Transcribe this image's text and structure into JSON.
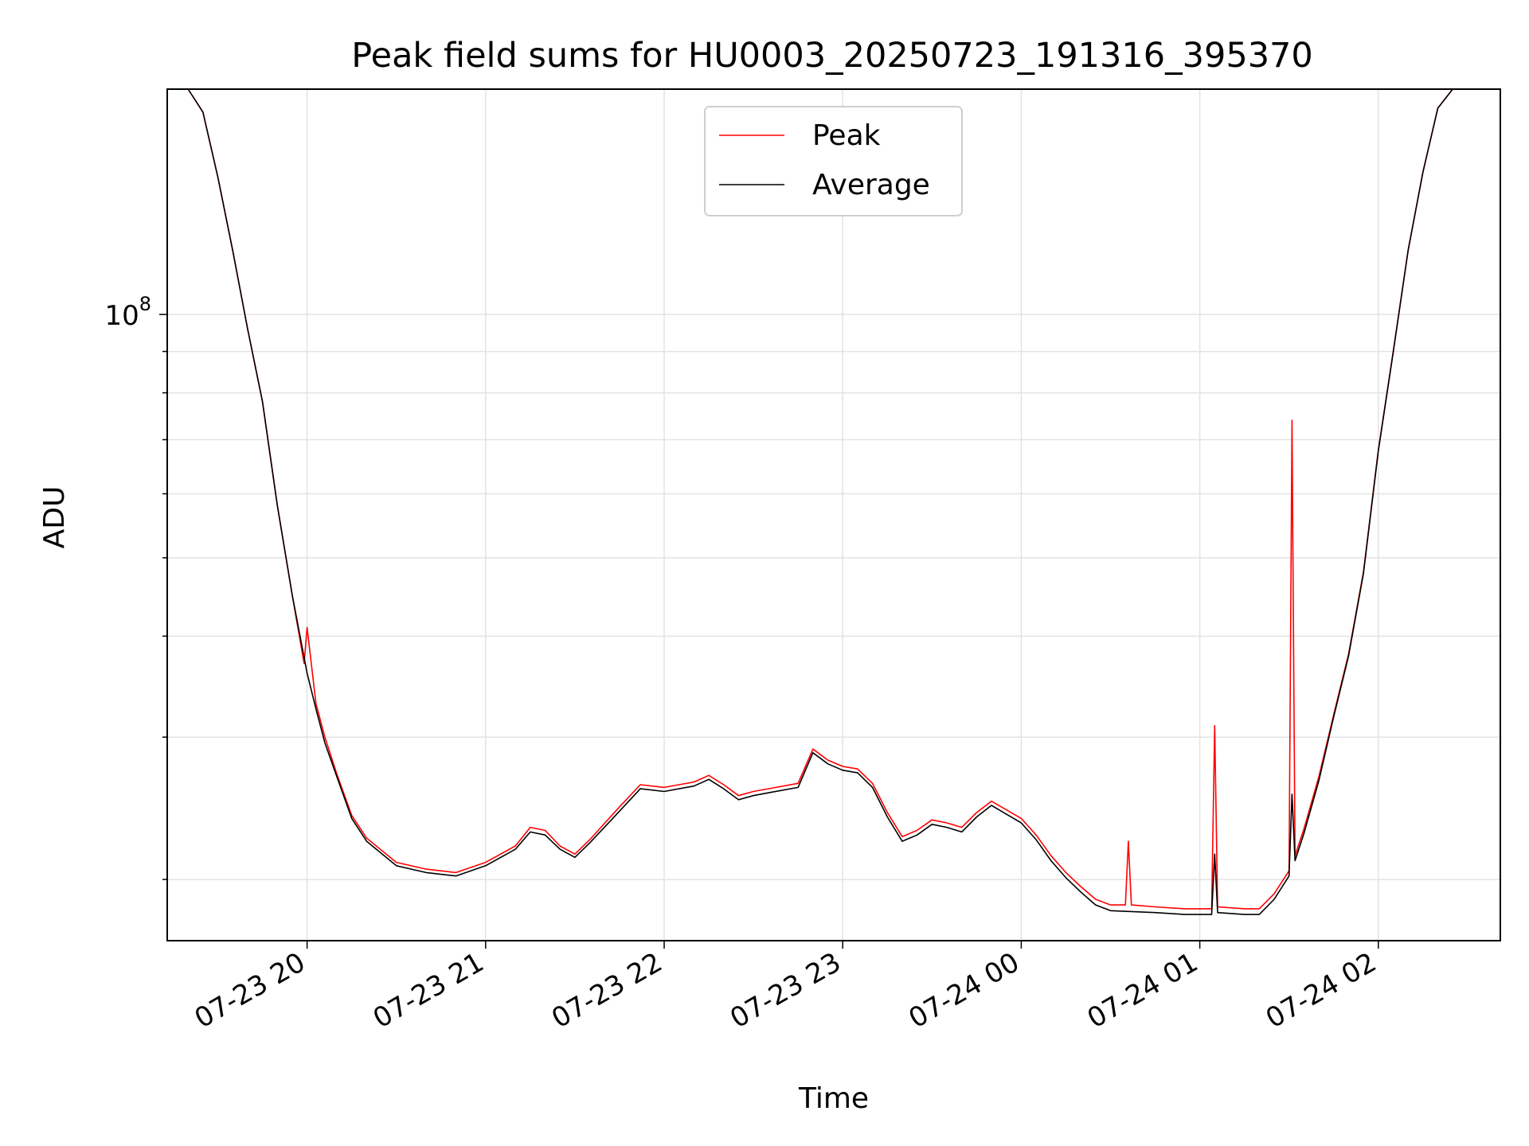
{
  "chart_data": {
    "type": "line",
    "title": "Peak field sums for HU0003_20250723_191316_395370",
    "xlabel": "Time",
    "ylabel": "ADU",
    "y_scale": "log",
    "xlim": [
      "2025-07-23 19:13",
      "2025-07-24 02:41"
    ],
    "ylim": [
      16800000,
      190000000
    ],
    "grid": true,
    "legend_placement": "upper-center",
    "x_ticks": [
      {
        "t": "2025-07-23 20:00",
        "label": "07-23 20"
      },
      {
        "t": "2025-07-23 21:00",
        "label": "07-23 21"
      },
      {
        "t": "2025-07-23 22:00",
        "label": "07-23 22"
      },
      {
        "t": "2025-07-23 23:00",
        "label": "07-23 23"
      },
      {
        "t": "2025-07-24 00:00",
        "label": "07-24 00"
      },
      {
        "t": "2025-07-24 01:00",
        "label": "07-24 01"
      },
      {
        "t": "2025-07-24 02:00",
        "label": "07-24 02"
      }
    ],
    "y_major_ticks": [
      {
        "value": 100000000,
        "base": "10",
        "exp": "8"
      }
    ],
    "y_minor_ticks": [
      20000000,
      30000000,
      40000000,
      50000000,
      60000000,
      70000000,
      80000000,
      90000000,
      200000000
    ],
    "series": [
      {
        "name": "Peak",
        "color": "#ff0000",
        "x": [
          "2025-07-23 19:13",
          "2025-07-23 19:20",
          "2025-07-23 19:25",
          "2025-07-23 19:30",
          "2025-07-23 19:35",
          "2025-07-23 19:40",
          "2025-07-23 19:45",
          "2025-07-23 19:50",
          "2025-07-23 19:55",
          "2025-07-23 19:59",
          "2025-07-23 20:00",
          "2025-07-23 20:03",
          "2025-07-23 20:06",
          "2025-07-23 20:10",
          "2025-07-23 20:15",
          "2025-07-23 20:20",
          "2025-07-23 20:30",
          "2025-07-23 20:40",
          "2025-07-23 20:50",
          "2025-07-23 21:00",
          "2025-07-23 21:10",
          "2025-07-23 21:15",
          "2025-07-23 21:20",
          "2025-07-23 21:25",
          "2025-07-23 21:30",
          "2025-07-23 21:35",
          "2025-07-23 21:45",
          "2025-07-23 21:52",
          "2025-07-23 22:00",
          "2025-07-23 22:10",
          "2025-07-23 22:15",
          "2025-07-23 22:20",
          "2025-07-23 22:25",
          "2025-07-23 22:30",
          "2025-07-23 22:35",
          "2025-07-23 22:45",
          "2025-07-23 22:50",
          "2025-07-23 22:55",
          "2025-07-23 23:00",
          "2025-07-23 23:05",
          "2025-07-23 23:10",
          "2025-07-23 23:15",
          "2025-07-23 23:20",
          "2025-07-23 23:25",
          "2025-07-23 23:30",
          "2025-07-23 23:35",
          "2025-07-23 23:40",
          "2025-07-23 23:45",
          "2025-07-23 23:50",
          "2025-07-24 00:00",
          "2025-07-24 00:05",
          "2025-07-24 00:10",
          "2025-07-24 00:15",
          "2025-07-24 00:20",
          "2025-07-24 00:25",
          "2025-07-24 00:30",
          "2025-07-24 00:35",
          "2025-07-24 00:36",
          "2025-07-24 00:37",
          "2025-07-24 00:45",
          "2025-07-24 00:55",
          "2025-07-24 01:04",
          "2025-07-24 01:05",
          "2025-07-24 01:06",
          "2025-07-24 01:15",
          "2025-07-24 01:20",
          "2025-07-24 01:25",
          "2025-07-24 01:30",
          "2025-07-24 01:31",
          "2025-07-24 01:32",
          "2025-07-24 01:35",
          "2025-07-24 01:40",
          "2025-07-24 01:45",
          "2025-07-24 01:50",
          "2025-07-24 01:55",
          "2025-07-24 02:00",
          "2025-07-24 02:05",
          "2025-07-24 02:10",
          "2025-07-24 02:15",
          "2025-07-24 02:20",
          "2025-07-24 02:25",
          "2025-07-24 02:30",
          "2025-07-24 02:41"
        ],
        "y": [
          190000000,
          190000000,
          178000000,
          148000000,
          120000000,
          96000000,
          78000000,
          58000000,
          45000000,
          37000000,
          41000000,
          33000000,
          30000000,
          27000000,
          24000000,
          22500000,
          21000000,
          20600000,
          20400000,
          21000000,
          22000000,
          23200000,
          23000000,
          22000000,
          21500000,
          22400000,
          24600000,
          26200000,
          26000000,
          26400000,
          26900000,
          26200000,
          25400000,
          25700000,
          25900000,
          26300000,
          29000000,
          28100000,
          27600000,
          27400000,
          26300000,
          24200000,
          22600000,
          23000000,
          23700000,
          23500000,
          23200000,
          24200000,
          25000000,
          23800000,
          22700000,
          21400000,
          20400000,
          19600000,
          18900000,
          18600000,
          18600000,
          22300000,
          18600000,
          18500000,
          18400000,
          18400000,
          31000000,
          18500000,
          18400000,
          18400000,
          19200000,
          20500000,
          74000000,
          21400000,
          23100000,
          26800000,
          32000000,
          38000000,
          48000000,
          68000000,
          90000000,
          120000000,
          150000000,
          180000000,
          190000000,
          190000000,
          190000000
        ]
      },
      {
        "name": "Average",
        "color": "#000000",
        "x": [
          "2025-07-23 19:13",
          "2025-07-23 19:20",
          "2025-07-23 19:25",
          "2025-07-23 19:30",
          "2025-07-23 19:35",
          "2025-07-23 19:40",
          "2025-07-23 19:45",
          "2025-07-23 19:50",
          "2025-07-23 19:55",
          "2025-07-23 20:00",
          "2025-07-23 20:03",
          "2025-07-23 20:06",
          "2025-07-23 20:10",
          "2025-07-23 20:15",
          "2025-07-23 20:20",
          "2025-07-23 20:30",
          "2025-07-23 20:40",
          "2025-07-23 20:50",
          "2025-07-23 21:00",
          "2025-07-23 21:10",
          "2025-07-23 21:15",
          "2025-07-23 21:20",
          "2025-07-23 21:25",
          "2025-07-23 21:30",
          "2025-07-23 21:35",
          "2025-07-23 21:45",
          "2025-07-23 21:52",
          "2025-07-23 22:00",
          "2025-07-23 22:10",
          "2025-07-23 22:15",
          "2025-07-23 22:20",
          "2025-07-23 22:25",
          "2025-07-23 22:30",
          "2025-07-23 22:35",
          "2025-07-23 22:45",
          "2025-07-23 22:50",
          "2025-07-23 22:55",
          "2025-07-23 23:00",
          "2025-07-23 23:05",
          "2025-07-23 23:10",
          "2025-07-23 23:15",
          "2025-07-23 23:20",
          "2025-07-23 23:25",
          "2025-07-23 23:30",
          "2025-07-23 23:35",
          "2025-07-23 23:40",
          "2025-07-23 23:45",
          "2025-07-23 23:50",
          "2025-07-24 00:00",
          "2025-07-24 00:05",
          "2025-07-24 00:10",
          "2025-07-24 00:15",
          "2025-07-24 00:20",
          "2025-07-24 00:25",
          "2025-07-24 00:30",
          "2025-07-24 00:45",
          "2025-07-24 00:55",
          "2025-07-24 01:04",
          "2025-07-24 01:05",
          "2025-07-24 01:06",
          "2025-07-24 01:15",
          "2025-07-24 01:20",
          "2025-07-24 01:25",
          "2025-07-24 01:30",
          "2025-07-24 01:31",
          "2025-07-24 01:32",
          "2025-07-24 01:35",
          "2025-07-24 01:40",
          "2025-07-24 01:45",
          "2025-07-24 01:50",
          "2025-07-24 01:55",
          "2025-07-24 02:00",
          "2025-07-24 02:05",
          "2025-07-24 02:10",
          "2025-07-24 02:15",
          "2025-07-24 02:20",
          "2025-07-24 02:25",
          "2025-07-24 02:30",
          "2025-07-24 02:41"
        ],
        "y": [
          190000000,
          190000000,
          178000000,
          148000000,
          120000000,
          96000000,
          78000000,
          58000000,
          45000000,
          36000000,
          32500000,
          29500000,
          26800000,
          23800000,
          22300000,
          20800000,
          20400000,
          20200000,
          20800000,
          21800000,
          22900000,
          22700000,
          21800000,
          21300000,
          22200000,
          24300000,
          25900000,
          25700000,
          26100000,
          26600000,
          25900000,
          25100000,
          25400000,
          25600000,
          26000000,
          28700000,
          27800000,
          27300000,
          27100000,
          26000000,
          23900000,
          22300000,
          22700000,
          23400000,
          23200000,
          22900000,
          23900000,
          24700000,
          23500000,
          22400000,
          21100000,
          20100000,
          19300000,
          18600000,
          18300000,
          18200000,
          18100000,
          18100000,
          21500000,
          18200000,
          18100000,
          18100000,
          18900000,
          20200000,
          25500000,
          21100000,
          22800000,
          26500000,
          31800000,
          37800000,
          47800000,
          67800000,
          89800000,
          120000000,
          150000000,
          180000000,
          190000000,
          190000000,
          190000000
        ]
      }
    ]
  }
}
